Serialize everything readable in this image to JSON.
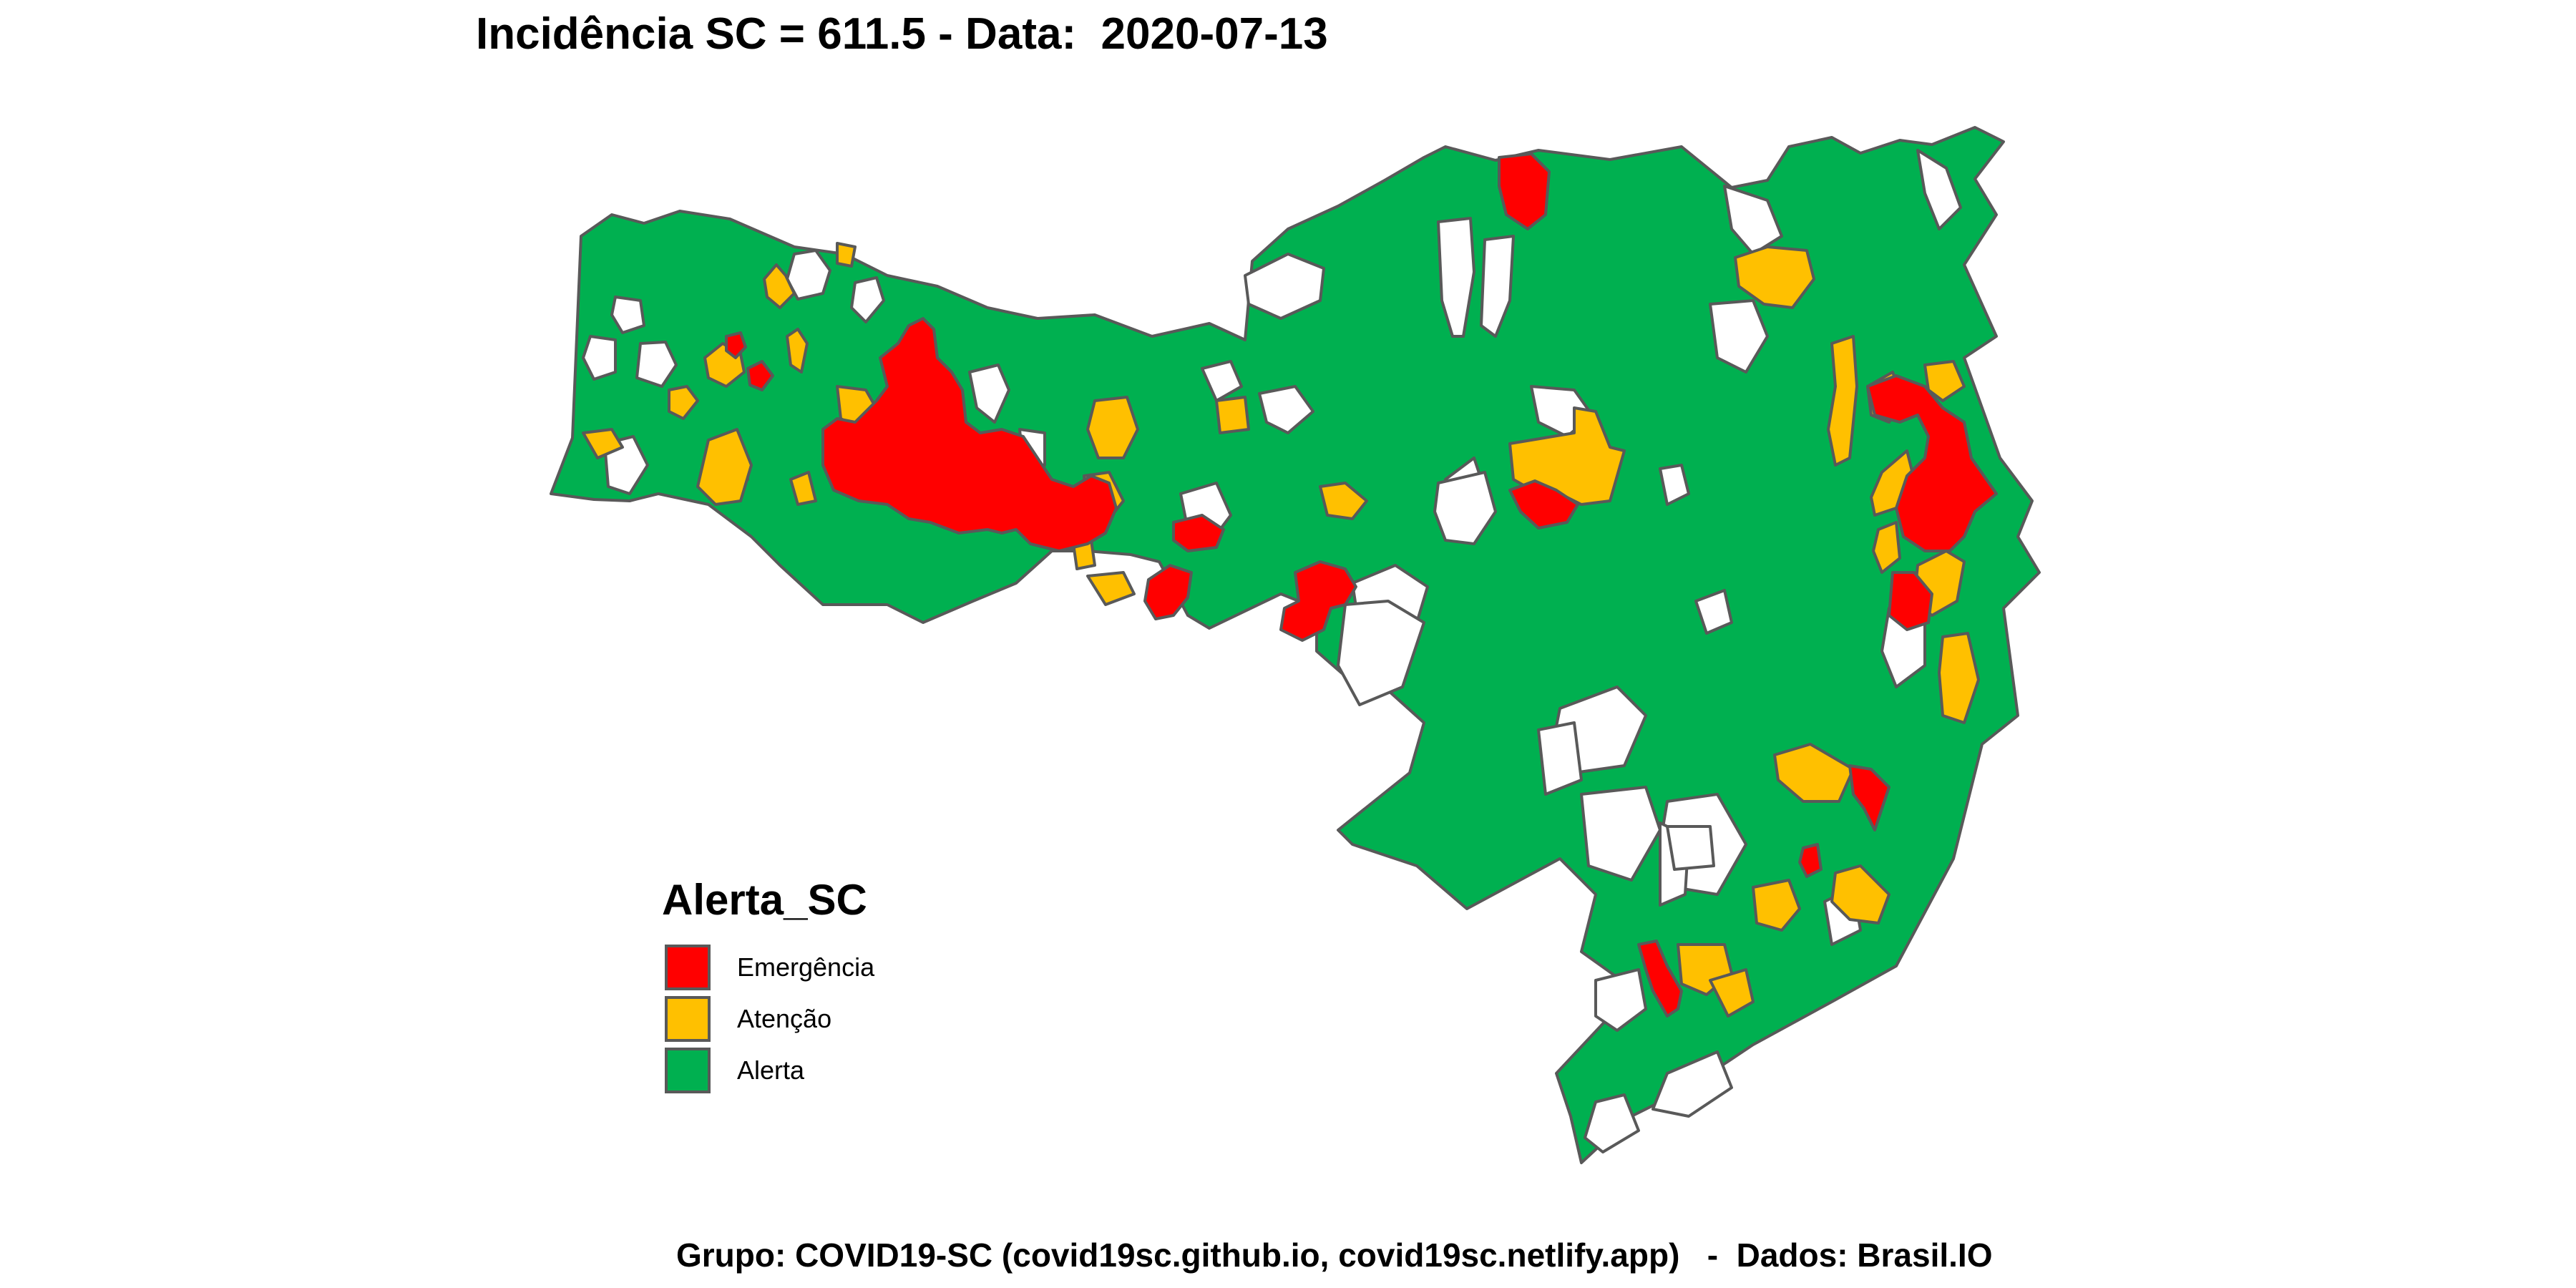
{
  "title": "Incidência SC = 611.5 - Data:  2020-07-13",
  "legend": {
    "title": "Alerta_SC",
    "items": [
      {
        "label": "Emergência",
        "color": "#FF0000"
      },
      {
        "label": "Atenção",
        "color": "#FFC000"
      },
      {
        "label": "Alerta",
        "color": "#00B050"
      }
    ]
  },
  "caption": "Grupo: COVID19-SC (covid19sc.github.io, covid19sc.netlify.app)   -  Dados: Brasil.IO",
  "colors": {
    "emergencia": "#FF0000",
    "atencao": "#FFC000",
    "alerta": "#00B050",
    "sem_dados": "#FFFFFF",
    "border": "#595959"
  }
}
